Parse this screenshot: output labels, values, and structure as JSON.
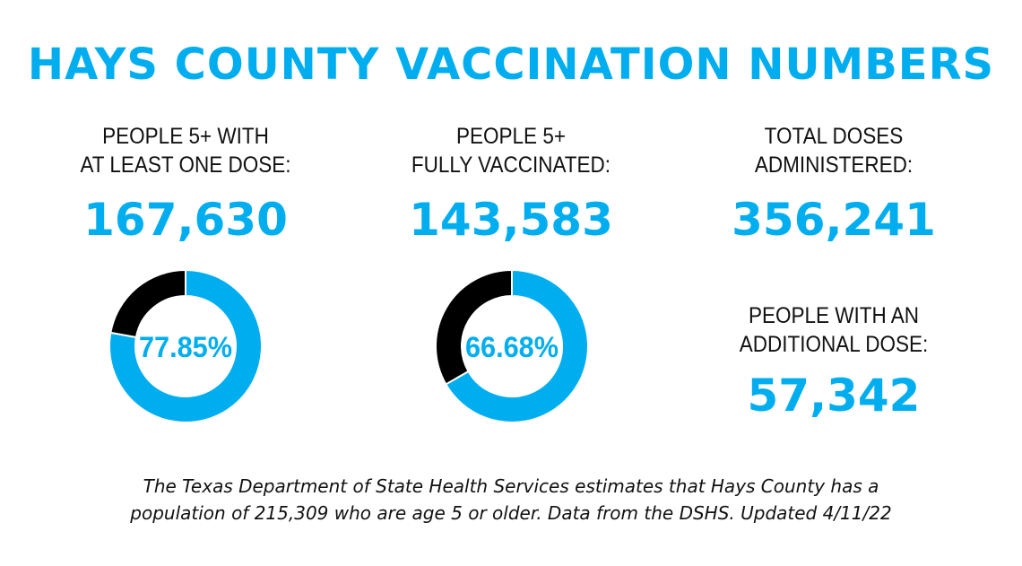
{
  "title": "HAYS COUNTY VACCINATION NUMBERS",
  "stats": [
    {
      "label_line1": "PEOPLE  5+ WITH",
      "label_line2": "AT LEAST ONE DOSE:",
      "value": "167,630"
    },
    {
      "label_line1": "PEOPLE 5+",
      "label_line2": "FULLY VACCINATED:",
      "value": "143,583"
    },
    {
      "label_line1": "TOTAL DOSES",
      "label_line2": "ADMINISTERED:",
      "value": "356,241"
    },
    {
      "label_line1": "PEOPLE WITH AN",
      "label_line2": "ADDITIONAL DOSE:",
      "value": "57,342"
    }
  ],
  "chart_data": [
    {
      "type": "pie",
      "style": "donut",
      "label": "77.85%",
      "values": [
        77.85,
        22.15
      ],
      "colors": [
        "#00aeef",
        "#000000"
      ]
    },
    {
      "type": "pie",
      "style": "donut",
      "label": "66.68%",
      "values": [
        66.68,
        33.32
      ],
      "colors": [
        "#00aeef",
        "#000000"
      ]
    }
  ],
  "footer": {
    "line1": "The Texas Department of State Health Services estimates that Hays County has a",
    "line2": "population of 215,309 who are age 5 or older. Data from the DSHS. Updated 4/11/22"
  }
}
